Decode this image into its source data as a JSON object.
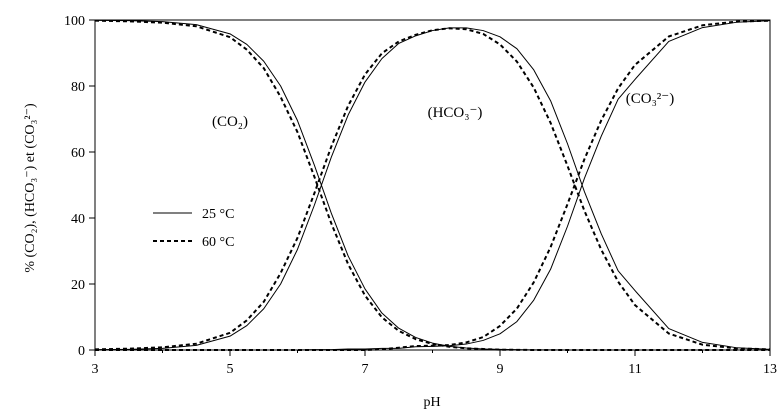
{
  "chart_data": {
    "type": "line",
    "xlabel": "pH",
    "ylabel": "% (CO₂), (HCO₃⁻) et (CO₃²⁻)",
    "xlim": [
      3,
      13
    ],
    "ylim": [
      0,
      100
    ],
    "xticks": [
      "3",
      "5",
      "7",
      "9",
      "11",
      "13"
    ],
    "yticks": [
      "0",
      "20",
      "40",
      "60",
      "80",
      "100"
    ],
    "grid": false,
    "legend_position": "center-left",
    "region_labels": {
      "co2": "(CO₂)",
      "hco3": "(HCO₃⁻)",
      "co3": "(CO₃²⁻)"
    },
    "x": [
      3.0,
      3.5,
      4.0,
      4.5,
      5.0,
      5.25,
      5.5,
      5.75,
      6.0,
      6.25,
      6.5,
      6.75,
      7.0,
      7.25,
      7.5,
      7.75,
      8.0,
      8.25,
      8.5,
      8.75,
      9.0,
      9.25,
      9.5,
      9.75,
      10.0,
      10.25,
      10.5,
      10.75,
      11.0,
      11.5,
      12.0,
      12.5,
      13.0
    ],
    "series": [
      {
        "name": "25 °C",
        "species": "CO2",
        "style": "solid",
        "values": [
          99.9,
          99.8,
          99.5,
          98.6,
          95.8,
          92.6,
          87.5,
          80.0,
          69.5,
          56.0,
          41.5,
          28.5,
          18.5,
          11.2,
          6.6,
          3.8,
          2.1,
          1.1,
          0.6,
          0.3,
          0.2,
          0.1,
          0.05,
          0.03,
          0.0,
          0.0,
          0.0,
          0.0,
          0.0,
          0.0,
          0.0,
          0.0,
          0.0
        ]
      },
      {
        "name": "25 °C",
        "species": "HCO3",
        "style": "solid",
        "values": [
          0.1,
          0.2,
          0.5,
          1.4,
          4.2,
          7.4,
          12.5,
          20.0,
          30.5,
          43.9,
          58.4,
          71.2,
          81.2,
          88.3,
          92.9,
          95.2,
          96.8,
          97.6,
          97.6,
          96.8,
          94.9,
          91.3,
          84.9,
          75.5,
          62.5,
          48.0,
          35.2,
          24.0,
          18.0,
          6.5,
          2.3,
          0.7,
          0.2
        ]
      },
      {
        "name": "25 °C",
        "species": "CO3",
        "style": "solid",
        "values": [
          0.0,
          0.0,
          0.0,
          0.0,
          0.0,
          0.0,
          0.0,
          0.0,
          0.0,
          0.1,
          0.1,
          0.3,
          0.3,
          0.5,
          0.5,
          1.0,
          1.1,
          1.3,
          1.8,
          2.9,
          4.9,
          8.6,
          15.1,
          24.5,
          37.5,
          52.0,
          64.8,
          76.0,
          82.0,
          93.5,
          97.7,
          99.3,
          99.8
        ]
      },
      {
        "name": "60 °C",
        "species": "CO2",
        "style": "dashed",
        "values": [
          99.8,
          99.6,
          99.2,
          98.1,
          94.8,
          91.0,
          85.4,
          76.7,
          66.0,
          52.5,
          38.4,
          26.0,
          16.5,
          9.9,
          5.8,
          3.3,
          1.8,
          1.0,
          0.5,
          0.3,
          0.1,
          0.05,
          0.0,
          0.0,
          0.0,
          0.0,
          0.0,
          0.0,
          0.0,
          0.0,
          0.0,
          0.0,
          0.0
        ]
      },
      {
        "name": "60 °C",
        "species": "HCO3",
        "style": "dashed",
        "values": [
          0.2,
          0.4,
          0.8,
          1.9,
          5.2,
          9.0,
          14.6,
          23.3,
          34.0,
          47.5,
          61.6,
          74.0,
          83.5,
          89.9,
          93.5,
          95.5,
          96.9,
          97.5,
          97.2,
          95.8,
          92.6,
          87.4,
          79.5,
          68.8,
          55.8,
          42.2,
          30.4,
          20.7,
          13.6,
          5.0,
          1.6,
          0.5,
          0.2
        ]
      },
      {
        "name": "60 °C",
        "species": "CO3",
        "style": "dashed",
        "values": [
          0.0,
          0.0,
          0.0,
          0.0,
          0.0,
          0.0,
          0.0,
          0.0,
          0.0,
          0.0,
          0.0,
          0.0,
          0.0,
          0.2,
          0.7,
          1.2,
          1.3,
          1.5,
          2.3,
          3.9,
          7.3,
          12.55,
          20.5,
          31.2,
          44.2,
          57.8,
          69.6,
          79.3,
          86.4,
          95.0,
          98.4,
          99.5,
          99.8
        ]
      }
    ],
    "legend": [
      {
        "label": "25 °C",
        "style": "solid"
      },
      {
        "label": "60 °C",
        "style": "dashed"
      }
    ]
  }
}
